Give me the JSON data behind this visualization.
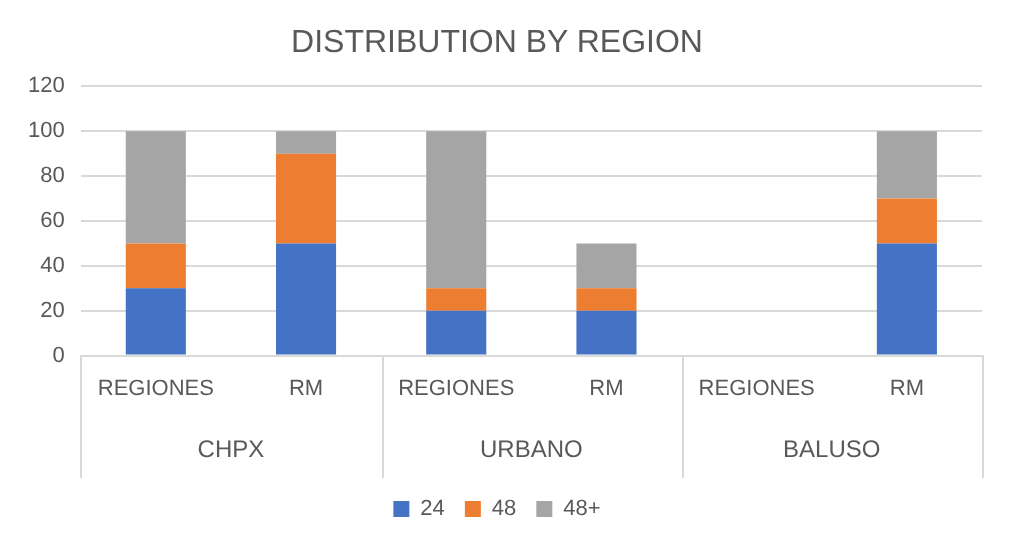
{
  "chart_data": {
    "type": "bar",
    "title": "DISTRIBUTION BY REGION",
    "stacked": true,
    "categories": [
      "REGIONES",
      "RM",
      "REGIONES",
      "RM",
      "REGIONES",
      "RM"
    ],
    "annotations": [
      "CHPX",
      "URBANO",
      "BALUSO"
    ],
    "series": [
      {
        "name": "24",
        "color": "#4472c4",
        "values": [
          30,
          50,
          20,
          20,
          null,
          50
        ]
      },
      {
        "name": "48",
        "color": "#ed7d31",
        "values": [
          20,
          40,
          10,
          10,
          null,
          20
        ]
      },
      {
        "name": "48+",
        "color": "#a5a5a5",
        "values": [
          50,
          10,
          70,
          20,
          null,
          30
        ]
      }
    ],
    "ylim": [
      0,
      120
    ],
    "yticks": [
      0,
      20,
      40,
      60,
      80,
      100,
      120
    ],
    "grid": "y",
    "legend": "bottom"
  }
}
